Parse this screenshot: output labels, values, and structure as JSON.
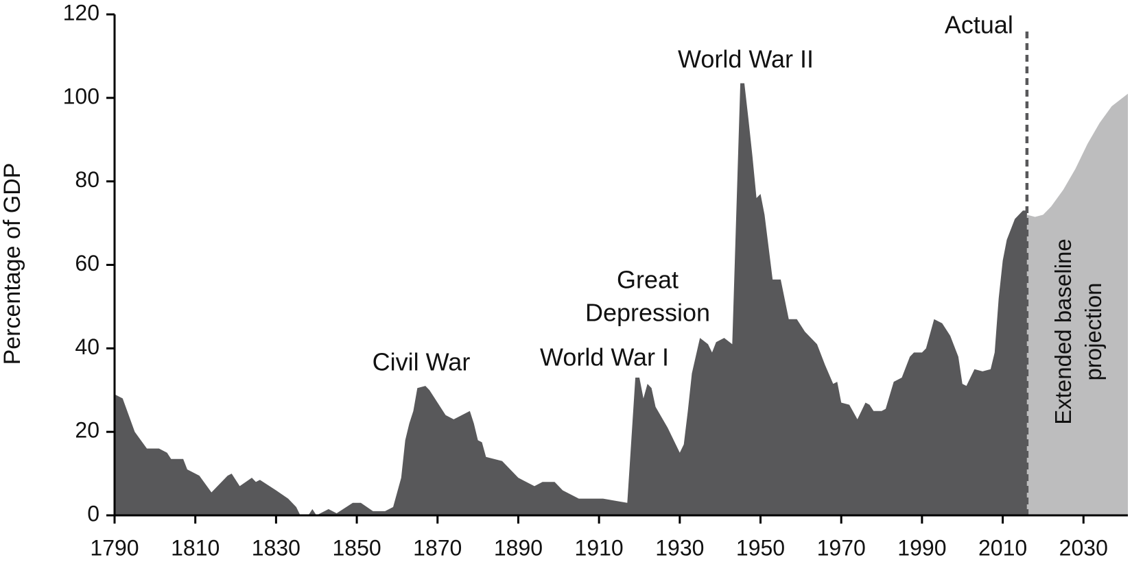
{
  "chart_data": {
    "type": "area",
    "y_label": "Percentage of GDP",
    "annotations": [
      "Civil War",
      "World War I",
      "Great",
      "Depression",
      "World War II"
    ],
    "series": [
      {
        "name": "Actual",
        "color": "#58585a",
        "x": [
          1790,
          1792,
          1795,
          1798,
          1801,
          1803,
          1804,
          1807,
          1808,
          1811,
          1814,
          1818,
          1819,
          1821,
          1824,
          1825,
          1826,
          1830,
          1833,
          1835,
          1836,
          1838,
          1839,
          1840,
          1843,
          1845,
          1849,
          1851,
          1854,
          1857,
          1859,
          1861,
          1862,
          1863,
          1864,
          1865,
          1867,
          1868,
          1870,
          1872,
          1874,
          1875,
          1878,
          1879,
          1880,
          1881,
          1882,
          1886,
          1890,
          1894,
          1896,
          1899,
          1901,
          1905,
          1911,
          1917,
          1918,
          1919,
          1920,
          1921,
          1922,
          1923,
          1924,
          1927,
          1930,
          1931,
          1932,
          1933,
          1935,
          1937,
          1938,
          1939,
          1941,
          1943,
          1945,
          1946,
          1947,
          1948,
          1949,
          1950,
          1951,
          1953,
          1955,
          1957,
          1959,
          1961,
          1964,
          1966,
          1968,
          1969,
          1970,
          1972,
          1974,
          1975,
          1976,
          1977,
          1978,
          1980,
          1981,
          1983,
          1985,
          1987,
          1988,
          1990,
          1991,
          1993,
          1995,
          1997,
          1999,
          2000,
          2001,
          2003,
          2005,
          2007,
          2008,
          2009,
          2010,
          2011,
          2013,
          2015,
          2016
        ],
        "values": [
          29,
          28,
          20,
          16,
          16,
          15,
          13.5,
          13.5,
          11,
          9.5,
          5.5,
          9.5,
          10,
          7,
          9,
          8,
          8.5,
          6,
          4,
          2,
          0,
          0,
          1.5,
          0,
          1.5,
          0.5,
          3,
          3,
          1,
          1,
          2,
          9,
          18,
          22,
          25,
          30.5,
          31,
          30,
          27,
          24,
          23,
          23.5,
          25,
          22,
          18,
          17.5,
          14,
          13,
          9,
          7,
          8,
          8,
          6,
          4,
          4,
          3,
          18,
          33,
          33,
          28,
          31.5,
          30.5,
          26,
          21,
          15,
          17,
          25,
          34,
          42.5,
          41,
          39,
          41.5,
          42.5,
          41,
          103.5,
          103.5,
          95,
          86,
          76,
          77,
          72,
          56.5,
          56.5,
          47,
          47,
          44,
          41,
          36,
          31.5,
          32,
          27,
          26.5,
          23,
          25,
          27,
          26.5,
          25,
          25,
          25.5,
          32,
          33,
          38,
          39,
          39,
          40,
          47,
          46,
          43,
          38,
          31.5,
          31,
          35,
          34.5,
          35,
          39,
          52,
          61,
          66,
          71,
          73,
          73
        ]
      },
      {
        "name": "Extended baseline projection",
        "color": "#bdbdbe",
        "x": [
          2016,
          2018,
          2020,
          2022,
          2025,
          2028,
          2031,
          2034,
          2037,
          2041
        ],
        "values": [
          72,
          71.5,
          72,
          74,
          78,
          83,
          89,
          94,
          98,
          101
        ]
      }
    ],
    "xlim": [
      1790,
      2041
    ],
    "xticks": [
      1790,
      1810,
      1830,
      1850,
      1870,
      1890,
      1910,
      1930,
      1950,
      1970,
      1990,
      2010,
      2030
    ],
    "ylim": [
      0,
      120
    ],
    "yticks": [
      0,
      20,
      40,
      60,
      80,
      100,
      120
    ]
  }
}
